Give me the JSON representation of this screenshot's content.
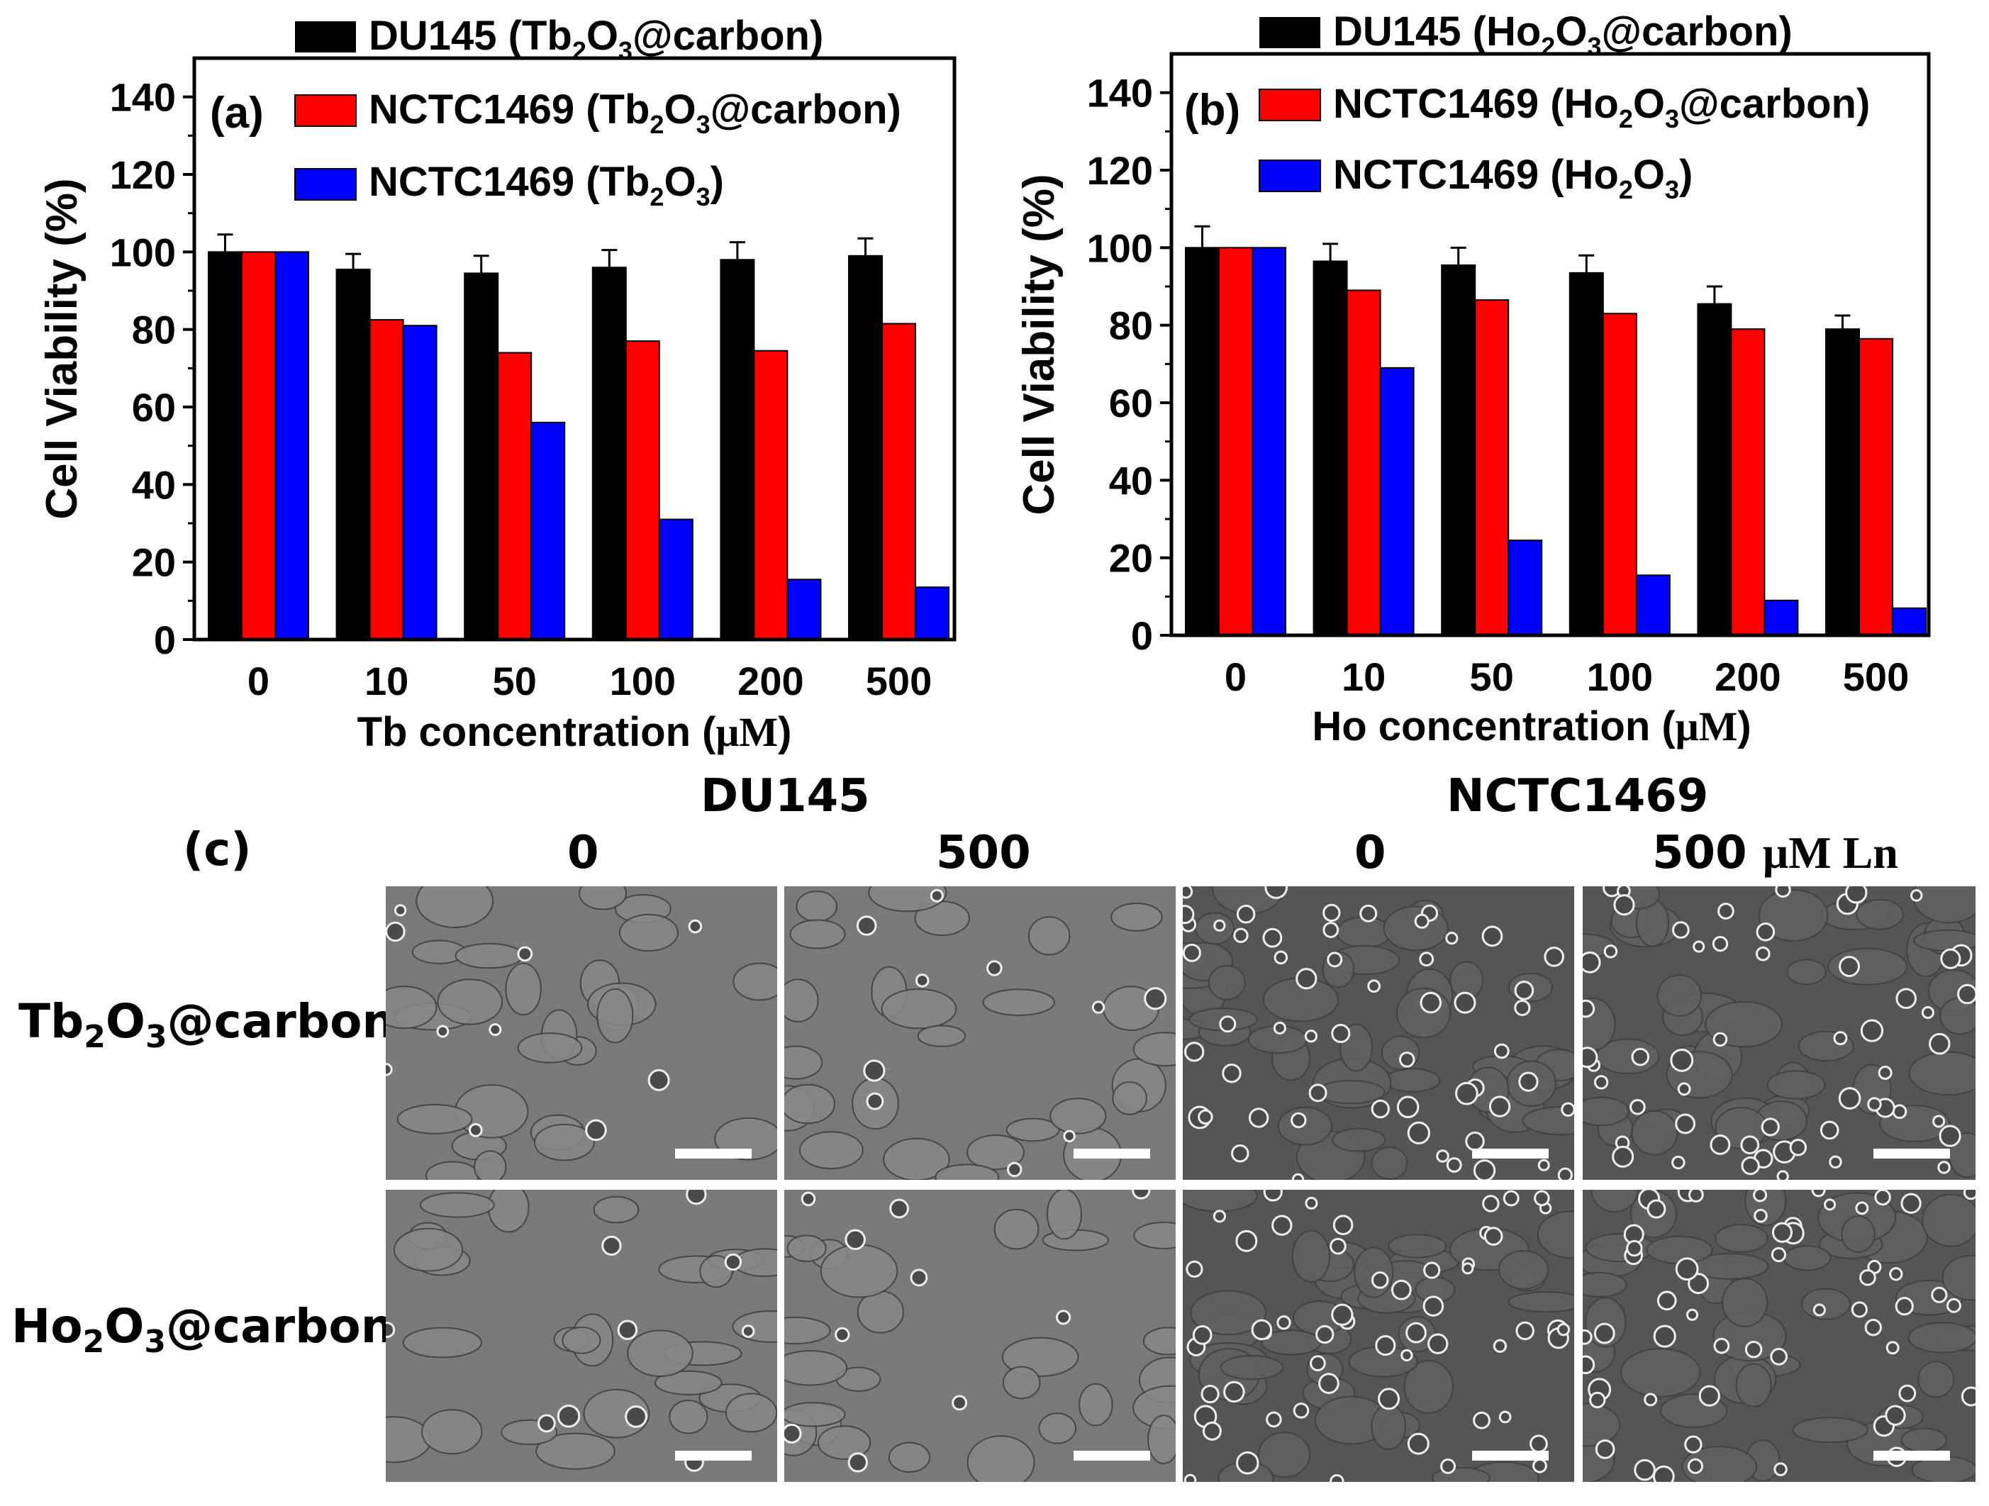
{
  "chart_data": [
    {
      "type": "bar",
      "panel_label": "(a)",
      "xlabel_prefix": "Tb concentration (",
      "xlabel_unit": "μM",
      "xlabel_suffix": ")",
      "ylabel": "Cell Viability (%)",
      "ylim": [
        0,
        150
      ],
      "yticks": [
        "0",
        "20",
        "40",
        "60",
        "80",
        "100",
        "120",
        "140"
      ],
      "categories": [
        "0",
        "10",
        "50",
        "100",
        "200",
        "500"
      ],
      "legend_position": "top-inside",
      "series": [
        {
          "name": "DU145 (Tb2O3@carbon)",
          "legend_main": "DU145 (Tb",
          "legend_sub1": "2",
          "legend_mid": "O",
          "legend_sub2": "3",
          "legend_tail": "@carbon)",
          "color": "#000000",
          "values": [
            100,
            95.5,
            94.5,
            96,
            98,
            99
          ],
          "errors": [
            4.5,
            4,
            4.5,
            4.5,
            4.5,
            4.5
          ]
        },
        {
          "name": "NCTC1469 (Tb2O3@carbon)",
          "legend_main": "NCTC1469 (Tb",
          "legend_sub1": "2",
          "legend_mid": "O",
          "legend_sub2": "3",
          "legend_tail": "@carbon)",
          "color": "#ff0000",
          "values": [
            100,
            82.5,
            74,
            77,
            74.5,
            81.5
          ],
          "errors": [
            0,
            0,
            0,
            0,
            0,
            0
          ]
        },
        {
          "name": "NCTC1469 (Tb2O3)",
          "legend_main": "NCTC1469 (Tb",
          "legend_sub1": "2",
          "legend_mid": "O",
          "legend_sub2": "3",
          "legend_tail": ")",
          "color": "#0000ff",
          "values": [
            100,
            81,
            56,
            31,
            15.5,
            13.5
          ],
          "errors": [
            0,
            0,
            0,
            0,
            0,
            0
          ]
        }
      ]
    },
    {
      "type": "bar",
      "panel_label": "(b)",
      "xlabel_prefix": "Ho concentration (",
      "xlabel_unit": "μM",
      "xlabel_suffix": ")",
      "ylabel": "Cell Viability (%)",
      "ylim": [
        0,
        150
      ],
      "yticks": [
        "0",
        "20",
        "40",
        "60",
        "80",
        "100",
        "120",
        "140"
      ],
      "categories": [
        "0",
        "10",
        "50",
        "100",
        "200",
        "500"
      ],
      "legend_position": "top-inside",
      "series": [
        {
          "name": "DU145 (Ho2O3@carbon)",
          "legend_main": "DU145 (Ho",
          "legend_sub1": "2",
          "legend_mid": "O",
          "legend_sub2": "3",
          "legend_tail": "@carbon)",
          "color": "#000000",
          "values": [
            100,
            96.5,
            95.5,
            93.5,
            85.5,
            79
          ],
          "errors": [
            5.5,
            4.5,
            4.5,
            4.5,
            4.5,
            3.5
          ]
        },
        {
          "name": "NCTC1469 (Ho2O3@carbon)",
          "legend_main": "NCTC1469 (Ho",
          "legend_sub1": "2",
          "legend_mid": "O",
          "legend_sub2": "3",
          "legend_tail": "@carbon)",
          "color": "#ff0000",
          "values": [
            100,
            89,
            86.5,
            83,
            79,
            76.5
          ],
          "errors": [
            0,
            0,
            0,
            0,
            0,
            0
          ]
        },
        {
          "name": "NCTC1469 (Ho2O3)",
          "legend_main": "NCTC1469 (Ho",
          "legend_sub1": "2",
          "legend_mid": "O",
          "legend_sub2": "3",
          "legend_tail": ")",
          "color": "#0000ff",
          "values": [
            100,
            69,
            24.5,
            15.5,
            9,
            7
          ],
          "errors": [
            0,
            0,
            0,
            0,
            0,
            0
          ]
        }
      ]
    }
  ],
  "micrographs": {
    "panel_label": "(c)",
    "group_headers": [
      "DU145",
      "NCTC1469"
    ],
    "column_headers": [
      "0",
      "500",
      "0",
      "500"
    ],
    "unit_label": "μM Ln",
    "rows": [
      {
        "name_main": "Tb",
        "name_sub1": "2",
        "name_mid": "O",
        "name_sub2": "3",
        "name_tail": "@carbon"
      },
      {
        "name_main": "Ho",
        "name_sub1": "2",
        "name_mid": "O",
        "name_sub2": "3",
        "name_tail": "@carbon"
      }
    ]
  }
}
